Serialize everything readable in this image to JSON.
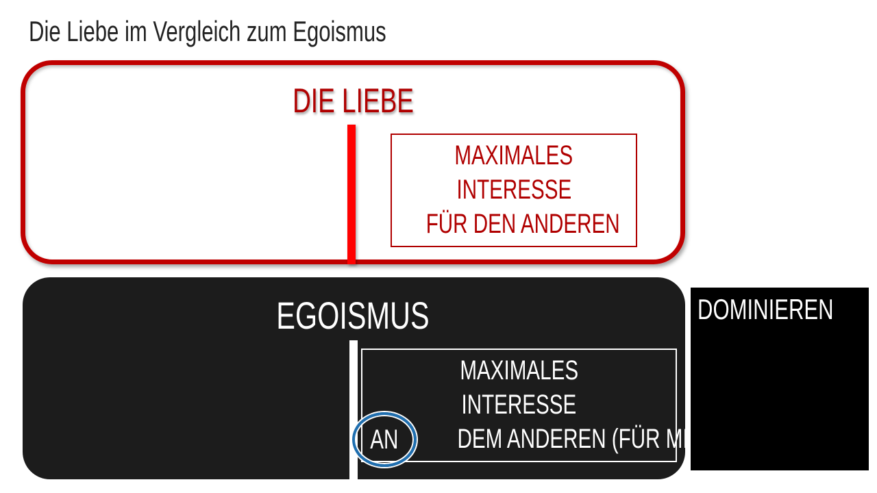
{
  "slide": {
    "title": "Die Liebe im Vergleich zum Egoismus",
    "love": {
      "heading": "DIE LIEBE",
      "box_lines": [
        "MAXIMALES",
        "INTERESSE",
        "FÜR  DEN ANDEREN"
      ]
    },
    "egoism": {
      "heading": "EGOISMUS",
      "box_lines": [
        "MAXIMALES",
        "INTERESSE",
        "DEM ANDEREN (FÜR MICH)"
      ],
      "highlighted_word": "AN"
    },
    "dominate": {
      "label": "DOMINIEREN"
    }
  },
  "colors": {
    "love_red": "#c00000",
    "bar_red": "#ff0000",
    "egoism_dark": "#1c1c1c",
    "highlight_blue": "#1f6fb0"
  }
}
